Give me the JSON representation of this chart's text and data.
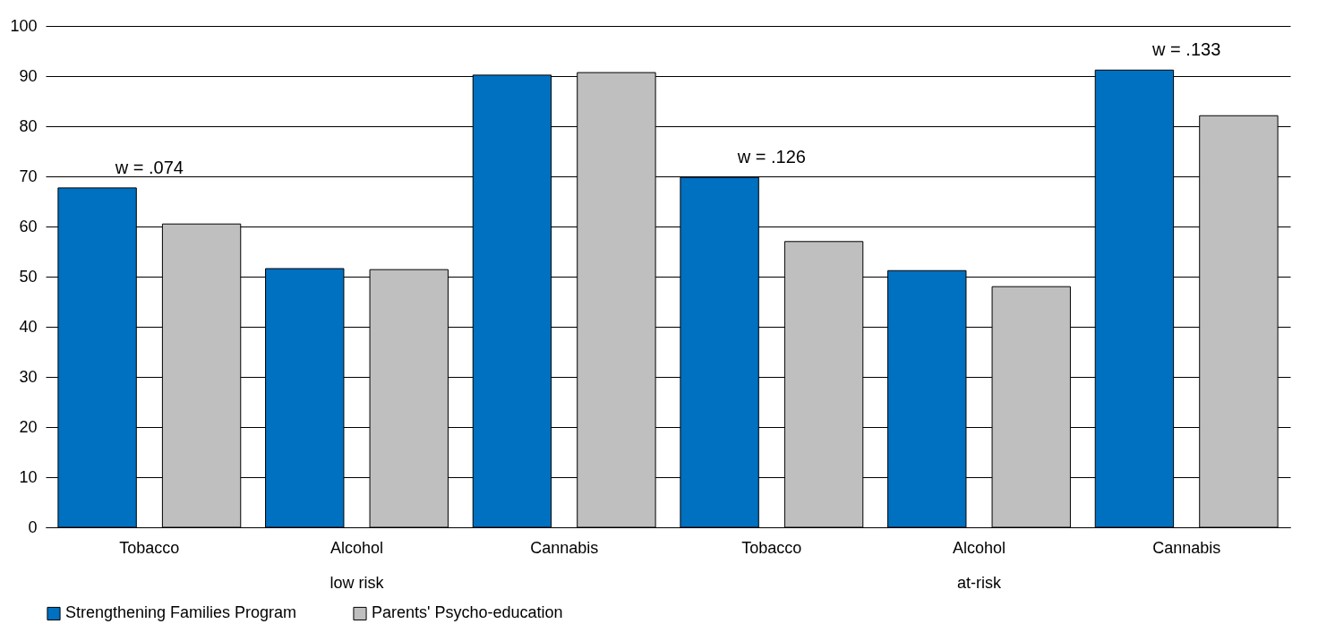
{
  "chart_data": {
    "type": "bar",
    "categories": [
      "Tobacco",
      "Alcohol",
      "Cannabis",
      "Tobacco",
      "Alcohol",
      "Cannabis"
    ],
    "series": [
      {
        "name": "Strengthening Families Program",
        "color": "#0070c0",
        "values": [
          67.7,
          51.6,
          90.2,
          69.8,
          51.2,
          91.2
        ]
      },
      {
        "name": "Parents' Psycho-education",
        "color": "#bfbfbf",
        "values": [
          60.5,
          51.4,
          90.7,
          57.0,
          48.0,
          82.1
        ]
      }
    ],
    "ylim": [
      0,
      100
    ],
    "yticks": [
      0,
      10,
      20,
      30,
      40,
      50,
      60,
      70,
      80,
      90,
      100
    ],
    "grid": "y",
    "legend": "bottom",
    "annotations": [
      "w = .074",
      "w = .126",
      "w = .133",
      "low risk",
      "at-risk"
    ]
  }
}
